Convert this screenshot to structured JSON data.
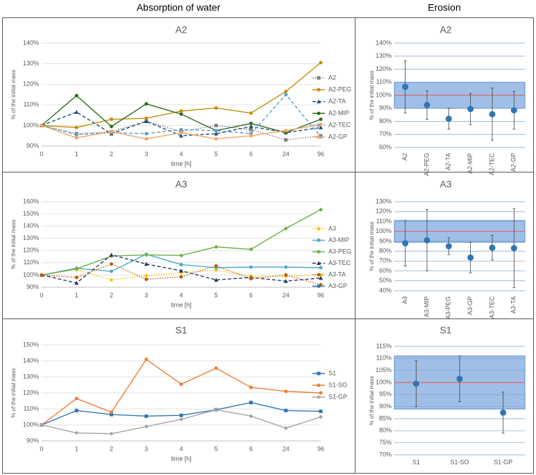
{
  "column_titles": [
    "Absorption of water",
    "Erosion"
  ],
  "chart_data": [
    {
      "type": "line",
      "title": "A2",
      "x_label": "time [h]",
      "y_label": "% of the initial mass",
      "categories": [
        "0",
        "1",
        "2",
        "3",
        "4",
        "5",
        "6",
        "24",
        "96"
      ],
      "ylim": [
        90,
        140
      ],
      "yticks": [
        {
          "value": 90,
          "label": "90%"
        },
        {
          "value": 100,
          "label": "100%"
        },
        {
          "value": 110,
          "label": "110%"
        },
        {
          "value": 120,
          "label": "120%"
        },
        {
          "value": 130,
          "label": "130%"
        },
        {
          "value": 140,
          "label": "140%"
        }
      ],
      "grid": true,
      "series": [
        {
          "name": "A2",
          "color": "#7f7f7f",
          "dash": "dotted",
          "marker": "square",
          "values": [
            100,
            96,
            97,
            102,
            97,
            100,
            98,
            93,
            95
          ]
        },
        {
          "name": "A2-PEG",
          "color": "#bf8f00",
          "dash": "solid",
          "marker": "circle",
          "values": [
            100,
            99,
            103,
            103.5,
            107,
            108.5,
            106,
            116.5,
            130.5
          ]
        },
        {
          "name": "A2-TA",
          "color": "#1f4e79",
          "dash": "dashed",
          "marker": "triangle",
          "values": [
            100,
            106.5,
            96,
            102,
            95,
            96,
            99.5,
            96.5,
            99
          ]
        },
        {
          "name": "A2-MIP",
          "color": "#2e6b1f",
          "dash": "solid",
          "marker": "circle",
          "values": [
            100,
            114.5,
            99.5,
            110.5,
            105.5,
            97.5,
            101,
            96.5,
            103
          ]
        },
        {
          "name": "A2-TEC",
          "color": "#5b9bd5",
          "dash": "dashed",
          "marker": "circle",
          "values": [
            100,
            95.5,
            96.5,
            96,
            98,
            97.5,
            96,
            115,
            94.5
          ]
        },
        {
          "name": "A2-GP",
          "color": "#f4a460",
          "dash": "solid",
          "marker": "circle",
          "values": [
            100,
            94,
            97,
            93.5,
            96.5,
            93.5,
            95,
            97.5,
            100.5
          ]
        }
      ]
    },
    {
      "type": "errorbar",
      "title": "A2",
      "y_label": "% of the initial mass",
      "categories": [
        "A2",
        "A2-PEG",
        "A2-TA",
        "A2-MIP",
        "A2-TEC",
        "A2-GP"
      ],
      "values": [
        106.5,
        92.5,
        82,
        89.5,
        85.5,
        88.5
      ],
      "errors": [
        20,
        11,
        8,
        12,
        20,
        14.5
      ],
      "color": "#2e75b6",
      "band": [
        90,
        110
      ],
      "band_color": "#8eb4e3",
      "reference_line": 100,
      "reference_color": "#e06666",
      "ylim": [
        60,
        140
      ],
      "yticks": [
        {
          "value": 60,
          "label": "60%"
        },
        {
          "value": 70,
          "label": "70%"
        },
        {
          "value": 80,
          "label": "80%"
        },
        {
          "value": 90,
          "label": "90%"
        },
        {
          "value": 100,
          "label": "100%"
        },
        {
          "value": 110,
          "label": "110%"
        },
        {
          "value": 120,
          "label": "120%"
        },
        {
          "value": 130,
          "label": "130%"
        },
        {
          "value": 140,
          "label": "140%"
        }
      ],
      "grid": true
    },
    {
      "type": "line",
      "title": "A3",
      "x_label": "time  [h]",
      "y_label": "% of the initial mass",
      "categories": [
        "0",
        "1",
        "2",
        "3",
        "4",
        "5",
        "6",
        "24",
        "96"
      ],
      "ylim": [
        90,
        160
      ],
      "yticks": [
        {
          "value": 90,
          "label": "90%"
        },
        {
          "value": 100,
          "label": "100%"
        },
        {
          "value": 110,
          "label": "110%"
        },
        {
          "value": 120,
          "label": "120%"
        },
        {
          "value": 130,
          "label": "130%"
        },
        {
          "value": 140,
          "label": "140%"
        },
        {
          "value": 150,
          "label": "150%"
        },
        {
          "value": 160,
          "label": "160%"
        }
      ],
      "grid": true,
      "series": [
        {
          "name": "A3",
          "color": "#ffc000",
          "dash": "dotted",
          "marker": "diamond",
          "values": [
            100,
            104.5,
            96,
            99.5,
            102,
            104,
            99,
            99,
            100
          ]
        },
        {
          "name": "A3-MIP",
          "color": "#4bacc6",
          "dash": "solid",
          "marker": "circle",
          "values": [
            100,
            105.5,
            103,
            117,
            108.5,
            106,
            106.5,
            106.5,
            106
          ]
        },
        {
          "name": "A3-PEG",
          "color": "#70ad47",
          "dash": "solid",
          "marker": "diamond",
          "values": [
            100,
            105,
            115.5,
            116.5,
            116,
            123,
            121,
            138,
            153.5
          ]
        },
        {
          "name": "A3-TEC",
          "color": "#1f3864",
          "dash": "dashed",
          "marker": "triangle",
          "values": [
            100,
            93.5,
            116.5,
            109,
            103.5,
            96,
            98,
            95,
            97.5
          ]
        },
        {
          "name": "A3-TA",
          "color": "#c55a11",
          "dash": "dotted",
          "marker": "circle",
          "values": [
            100,
            98,
            109,
            96.5,
            98.5,
            107.5,
            97,
            100,
            92
          ]
        },
        {
          "name": "A3-GP",
          "color": "#2e75b6",
          "dash": "solid",
          "marker": "circle",
          "values": [
            null,
            null,
            null,
            null,
            null,
            null,
            null,
            null,
            null
          ]
        }
      ]
    },
    {
      "type": "errorbar",
      "title": "A3",
      "y_label": "% of the initial mass",
      "categories": [
        "A3",
        "A3-MIP",
        "A3-PEG",
        "A3-GP",
        "A3-TEC",
        "A3-TA"
      ],
      "values": [
        88,
        91,
        85,
        73.5,
        83.5,
        83
      ],
      "errors": [
        23,
        31,
        8.5,
        15.5,
        12.5,
        40
      ],
      "color": "#2e75b6",
      "band": [
        89,
        111
      ],
      "band_color": "#8eb4e3",
      "reference_line": 100,
      "reference_color": "#e06666",
      "ylim": [
        40,
        130
      ],
      "yticks": [
        {
          "value": 40,
          "label": "40%"
        },
        {
          "value": 50,
          "label": "50%"
        },
        {
          "value": 60,
          "label": "60%"
        },
        {
          "value": 70,
          "label": "70%"
        },
        {
          "value": 80,
          "label": "80%"
        },
        {
          "value": 90,
          "label": "90%"
        },
        {
          "value": 100,
          "label": "100%"
        },
        {
          "value": 110,
          "label": "110%"
        },
        {
          "value": 120,
          "label": "120%"
        },
        {
          "value": 130,
          "label": "130%"
        }
      ],
      "grid": true
    },
    {
      "type": "line",
      "title": "S1",
      "x_label": "time [h]",
      "y_label": "% of the initial mass",
      "categories": [
        "0",
        "1",
        "2",
        "3",
        "4",
        "5",
        "6",
        "24",
        "96"
      ],
      "ylim": [
        90,
        150
      ],
      "yticks": [
        {
          "value": 90,
          "label": "90%"
        },
        {
          "value": 100,
          "label": "100%"
        },
        {
          "value": 110,
          "label": "110%"
        },
        {
          "value": 120,
          "label": "120%"
        },
        {
          "value": 130,
          "label": "130%"
        },
        {
          "value": 140,
          "label": "140%"
        },
        {
          "value": 150,
          "label": "150%"
        }
      ],
      "grid": true,
      "series": [
        {
          "name": "S1",
          "color": "#2e75b6",
          "dash": "solid",
          "marker": "square",
          "values": [
            100,
            109,
            106.5,
            105.5,
            106,
            109.5,
            114,
            109,
            108.5
          ]
        },
        {
          "name": "S1-SO",
          "color": "#ed7d31",
          "dash": "solid",
          "marker": "circle",
          "values": [
            100,
            116.5,
            108,
            141,
            125.5,
            135.5,
            123.5,
            121,
            120
          ]
        },
        {
          "name": "S1-GP",
          "color": "#a5a5a5",
          "dash": "solid",
          "marker": "diamond",
          "values": [
            100,
            95,
            94.5,
            99,
            103.5,
            109.5,
            105.5,
            98,
            105
          ]
        }
      ]
    },
    {
      "type": "errorbar",
      "title": "S1",
      "y_label": "% of the initial mass",
      "categories": [
        "S1",
        "S1-SO",
        "S1-GP"
      ],
      "values": [
        99.5,
        101.5,
        87.5
      ],
      "errors": [
        9.5,
        9.5,
        8.5
      ],
      "color": "#2e75b6",
      "band": [
        89,
        111
      ],
      "band_color": "#8eb4e3",
      "reference_line": 100,
      "reference_color": "#e06666",
      "ylim": [
        70,
        115
      ],
      "yticks": [
        {
          "value": 70,
          "label": "70%"
        },
        {
          "value": 75,
          "label": "75%"
        },
        {
          "value": 80,
          "label": "80%"
        },
        {
          "value": 85,
          "label": "85%"
        },
        {
          "value": 90,
          "label": "90%"
        },
        {
          "value": 95,
          "label": "95%"
        },
        {
          "value": 100,
          "label": "100%"
        },
        {
          "value": 105,
          "label": "105%"
        },
        {
          "value": 110,
          "label": "110%"
        },
        {
          "value": 115,
          "label": "115%"
        }
      ],
      "grid": true
    }
  ]
}
